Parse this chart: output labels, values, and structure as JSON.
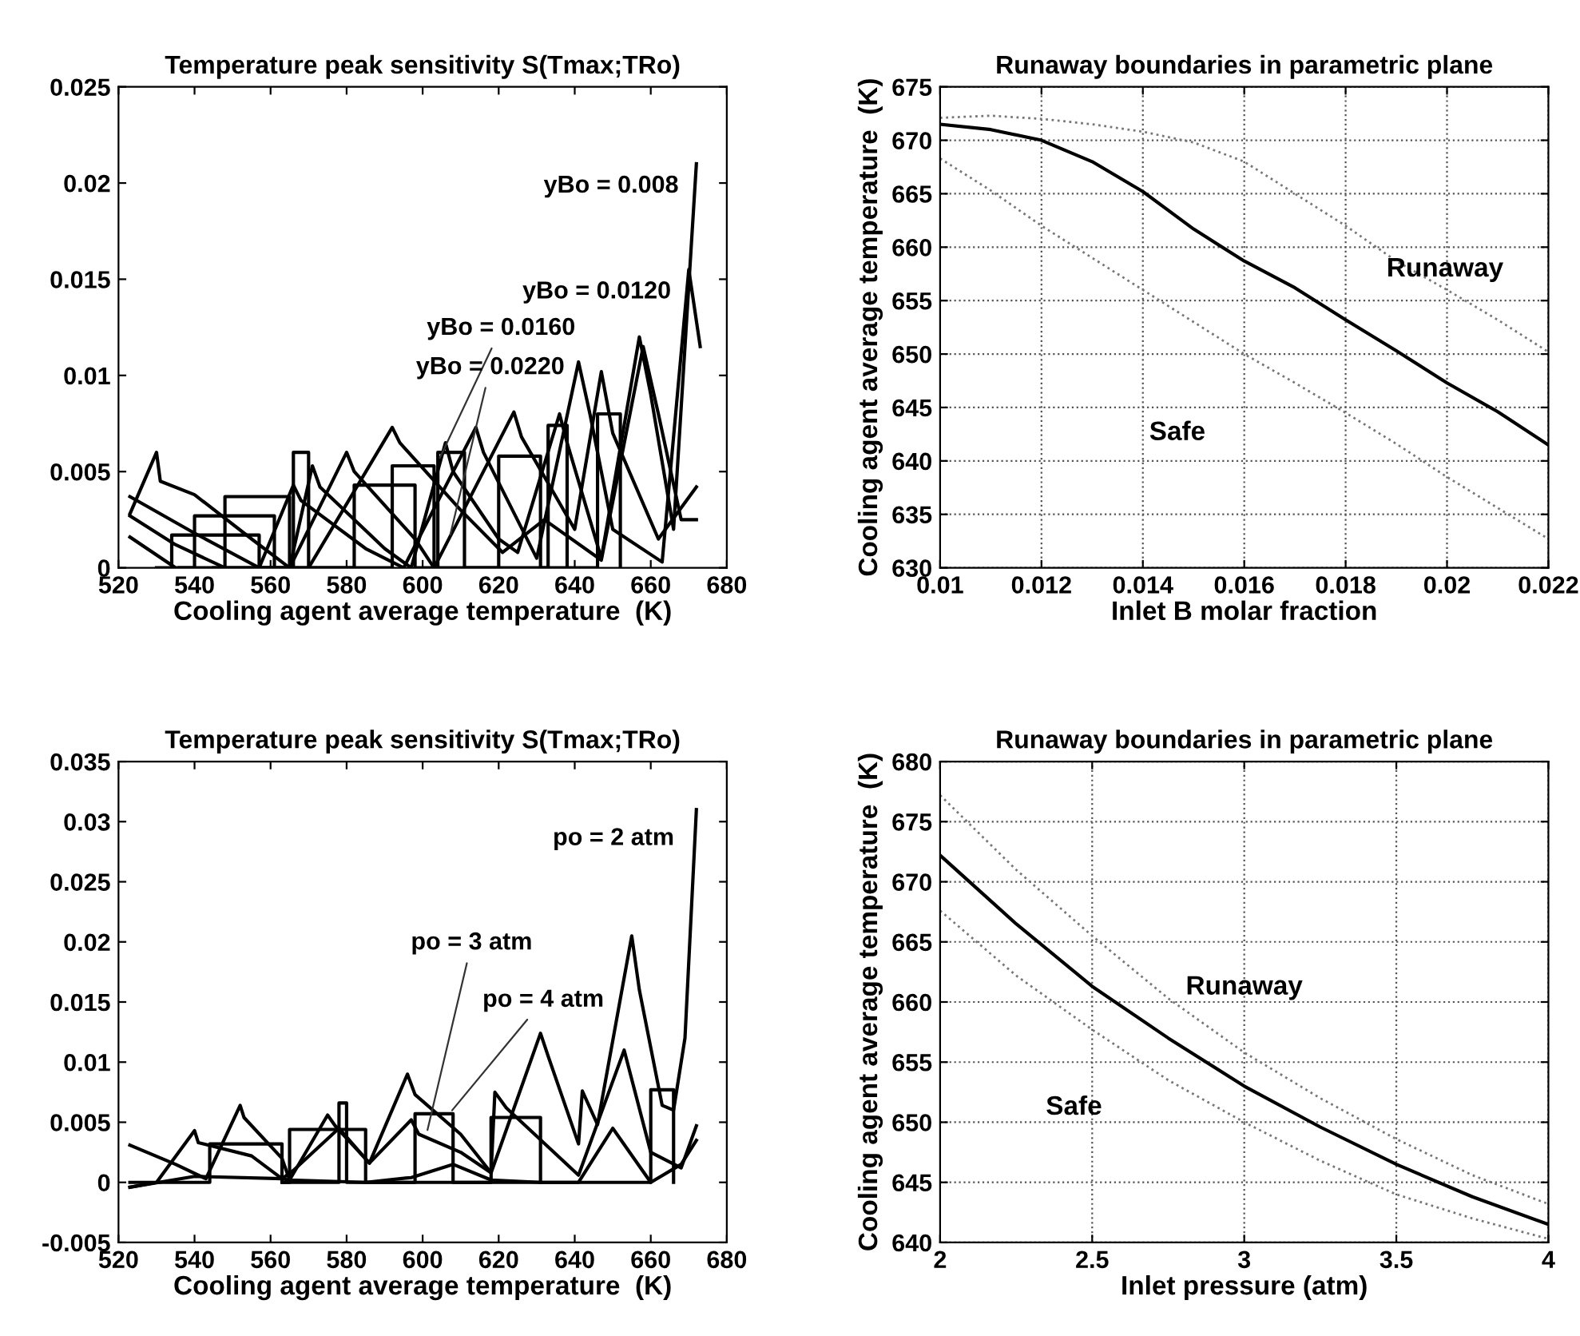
{
  "chart_data": [
    {
      "type": "line",
      "title": "Temperature peak sensitivity S(Tmax;TRo)",
      "xlabel": "Cooling agent average temperature  (K)",
      "xlim": [
        520,
        680
      ],
      "xticks": [
        520,
        540,
        560,
        580,
        600,
        620,
        640,
        660,
        680
      ],
      "ylim": [
        0,
        0.025
      ],
      "yticks": [
        0,
        0.005,
        0.01,
        0.015,
        0.02,
        0.025
      ],
      "grid": false,
      "series": [
        {
          "color": "#000000",
          "x": [
            523,
            530,
            531,
            540,
            555,
            565,
            571,
            573,
            590,
            597,
            606,
            608,
            620,
            625,
            636,
            638,
            647,
            657,
            660,
            666,
            672
          ],
          "values": [
            0.0028,
            0.006,
            0.0045,
            0.0038,
            0.0015,
            0.0,
            0.0053,
            0.0042,
            0.001,
            0.0,
            0.0065,
            0.005,
            0.0015,
            0.0008,
            0.008,
            0.0065,
            0.0005,
            0.012,
            0.009,
            0.002,
            0.021
          ]
        },
        {
          "color": "#000000",
          "x": [
            523,
            540,
            557,
            566,
            568,
            585,
            595,
            614,
            616,
            630,
            641,
            644,
            650,
            663,
            670,
            673
          ],
          "values": [
            0.0037,
            0.0018,
            0.0,
            0.0043,
            0.0035,
            0.001,
            0.0,
            0.0073,
            0.006,
            0.0005,
            0.0107,
            0.008,
            0.002,
            0.0003,
            0.0155,
            0.0115
          ]
        },
        {
          "color": "#000000",
          "x": [
            523,
            535,
            548,
            565,
            580,
            582,
            598,
            603,
            624,
            626,
            640,
            647,
            650,
            662,
            672
          ],
          "values": [
            0.0027,
            0.0012,
            0.0,
            0.0,
            0.006,
            0.005,
            0.0015,
            0.0,
            0.0081,
            0.0068,
            0.002,
            0.0102,
            0.007,
            0.0015,
            0.0042
          ]
        },
        {
          "color": "#000000",
          "x": [
            523,
            535,
            555,
            570,
            592,
            594,
            610,
            621,
            632,
            647,
            658,
            662,
            668,
            672
          ],
          "values": [
            0.0016,
            0.0,
            0.0,
            0.0,
            0.0073,
            0.0065,
            0.003,
            0.0008,
            0.0025,
            0.0004,
            0.0115,
            0.008,
            0.0025,
            0.0025
          ]
        },
        {
          "type": "step",
          "color": "#000000",
          "x": [
            530,
            534,
            557,
            566,
            570,
            592,
            603,
            620,
            631,
            646,
            652
          ],
          "values": [
            0,
            0.0017,
            0,
            0.006,
            0,
            0.0053,
            0,
            0.0058,
            0,
            0.008,
            0
          ]
        },
        {
          "type": "step",
          "color": "#000000",
          "x": [
            536,
            540,
            561
          ],
          "values": [
            0,
            0.0027,
            0
          ]
        },
        {
          "type": "step",
          "color": "#000000",
          "x": [
            545,
            548,
            565,
            582,
            598,
            604,
            611,
            633,
            638
          ],
          "values": [
            0,
            0.0037,
            0,
            0.0043,
            0,
            0.006,
            0,
            0.0074,
            0
          ]
        }
      ],
      "annotations": [
        {
          "text": "yBo = 0.008",
          "x": 672,
          "y": 0.021
        },
        {
          "text": "yBo = 0.0120",
          "x": 670,
          "y": 0.0155
        },
        {
          "text": "yBo = 0.0160",
          "x": 604,
          "y": 0.0055
        },
        {
          "text": "yBo = 0.0220",
          "x": 607,
          "y": 0.0015
        }
      ]
    },
    {
      "type": "line",
      "title": "Runaway boundaries in parametric plane",
      "xlabel": "Inlet B molar fraction",
      "ylabel": "Cooling agent average temperature  (K)",
      "xlim": [
        0.01,
        0.022
      ],
      "xticks": [
        0.01,
        0.012,
        0.014,
        0.016,
        0.018,
        0.02,
        0.022
      ],
      "ylim": [
        630,
        675
      ],
      "yticks": [
        630,
        635,
        640,
        645,
        650,
        655,
        660,
        665,
        670,
        675
      ],
      "grid": true,
      "series": [
        {
          "color": "#000000",
          "line_style": "solid",
          "x": [
            0.01,
            0.011,
            0.012,
            0.013,
            0.014,
            0.015,
            0.016,
            0.017,
            0.018,
            0.019,
            0.02,
            0.021,
            0.022
          ],
          "values": [
            671.5,
            671,
            670,
            668,
            665.2,
            661.7,
            658.7,
            656.2,
            653.2,
            650.3,
            647.3,
            644.6,
            641.5
          ]
        },
        {
          "color": "#777777",
          "line_style": "dotted",
          "x": [
            0.01,
            0.011,
            0.012,
            0.013,
            0.014,
            0.015,
            0.016,
            0.017,
            0.018,
            0.019,
            0.02,
            0.021,
            0.022
          ],
          "values": [
            672.1,
            672.3,
            672,
            671.5,
            670.8,
            669.8,
            668,
            665,
            662,
            658.7,
            656,
            653.2,
            650.2
          ]
        },
        {
          "color": "#777777",
          "line_style": "dotted",
          "x": [
            0.01,
            0.011,
            0.012,
            0.013,
            0.014,
            0.015,
            0.016,
            0.017,
            0.018,
            0.019,
            0.02,
            0.021,
            0.022
          ],
          "values": [
            668.3,
            665.3,
            662,
            659,
            656,
            653,
            650,
            647.3,
            644.5,
            641.6,
            638.5,
            635.6,
            632.7
          ]
        }
      ],
      "annotations": [
        "Runaway",
        "Safe"
      ]
    },
    {
      "type": "line",
      "title": "Temperature peak sensitivity S(Tmax;TRo)",
      "xlabel": "Cooling agent average temperature  (K)",
      "xlim": [
        520,
        680
      ],
      "xticks": [
        520,
        540,
        560,
        580,
        600,
        620,
        640,
        660,
        680
      ],
      "ylim": [
        -0.005,
        0.035
      ],
      "yticks": [
        -0.005,
        0,
        0.005,
        0.01,
        0.015,
        0.02,
        0.025,
        0.03,
        0.035
      ],
      "grid": false,
      "series": [
        {
          "color": "#000000",
          "x": [
            523,
            535,
            543,
            552,
            553,
            563,
            565,
            575,
            577,
            586,
            596,
            598,
            610,
            618,
            631,
            633,
            641,
            642,
            646,
            655,
            657,
            663,
            666,
            669,
            672
          ],
          "values": [
            0.0031,
            0.0015,
            0.0003,
            0.0064,
            0.0054,
            0.002,
            0.0002,
            0.0056,
            0.0047,
            0.0016,
            0.009,
            0.0073,
            0.004,
            0.0008,
            0.0124,
            0.0105,
            0.0032,
            0.0076,
            0.0048,
            0.0205,
            0.016,
            0.0064,
            0.006,
            0.012,
            0.031
          ]
        },
        {
          "color": "#000000",
          "x": [
            523,
            530,
            540,
            541,
            555,
            563,
            566,
            578,
            586,
            597,
            599,
            610,
            618,
            619,
            622,
            641,
            653,
            660,
            668,
            672
          ],
          "values": [
            -0.0004,
            0,
            0.0043,
            0.0033,
            0.0022,
            0.0003,
            0.001,
            0.0045,
            0.0016,
            0.0052,
            0.004,
            0.0025,
            0.0008,
            0.0075,
            0.0062,
            0.0006,
            0.011,
            0.0025,
            0.0012,
            0.0047
          ]
        },
        {
          "color": "#000000",
          "x": [
            523,
            540,
            563,
            565,
            585,
            597,
            608,
            618,
            631,
            641,
            650,
            660,
            668,
            672
          ],
          "values": [
            -0.0004,
            0.0005,
            0.0003,
            0.0002,
            0.0,
            0.0004,
            0.0015,
            0.0002,
            0.0,
            0.0,
            0.0045,
            0.0,
            0.0015,
            0.0035
          ]
        },
        {
          "type": "step",
          "color": "#000000",
          "x": [
            523,
            537,
            544,
            563,
            578,
            580,
            598,
            608,
            660,
            666
          ],
          "values": [
            0,
            0,
            0.0032,
            0,
            0.0066,
            0,
            0.0057,
            0,
            0.0077,
            0
          ]
        },
        {
          "type": "step",
          "color": "#000000",
          "x": [
            563,
            565,
            585,
            618,
            631
          ],
          "values": [
            0,
            0.0044,
            0,
            0.0054,
            0
          ]
        }
      ],
      "annotations": [
        {
          "text": "po = 2 atm",
          "x": 672,
          "y": 0.031
        },
        {
          "text": "po = 3 atm",
          "x": 601,
          "y": 0.004
        },
        {
          "text": "po = 4 atm",
          "x": 607,
          "y": 0.0057
        }
      ]
    },
    {
      "type": "line",
      "title": "Runaway boundaries in parametric plane",
      "xlabel": "Inlet pressure (atm)",
      "ylabel": "Cooling agent average temperature  (K)",
      "xlim": [
        2,
        4
      ],
      "xticks": [
        2,
        2.5,
        3,
        3.5,
        4
      ],
      "ylim": [
        640,
        680
      ],
      "yticks": [
        640,
        645,
        650,
        655,
        660,
        665,
        670,
        675,
        680
      ],
      "grid": true,
      "series": [
        {
          "color": "#000000",
          "line_style": "solid",
          "x": [
            2,
            2.25,
            2.5,
            2.75,
            3,
            3.25,
            3.5,
            3.75,
            4
          ],
          "values": [
            672.2,
            666.5,
            661.3,
            657,
            653,
            649.6,
            646.5,
            643.8,
            641.5
          ]
        },
        {
          "color": "#777777",
          "line_style": "dotted",
          "x": [
            2,
            2.25,
            2.5,
            2.75,
            3,
            3.25,
            3.5,
            3.75,
            4
          ],
          "values": [
            677.2,
            671,
            665.5,
            660.3,
            655.8,
            652,
            648.6,
            645.6,
            643.2
          ]
        },
        {
          "color": "#777777",
          "line_style": "dotted",
          "x": [
            2,
            2.25,
            2.5,
            2.75,
            3,
            3.25,
            3.5,
            3.75,
            4
          ],
          "values": [
            667.6,
            662.2,
            657.7,
            653.5,
            650,
            646.8,
            644,
            642,
            640.3
          ]
        }
      ],
      "annotations": [
        "Runaway",
        "Safe"
      ]
    }
  ]
}
